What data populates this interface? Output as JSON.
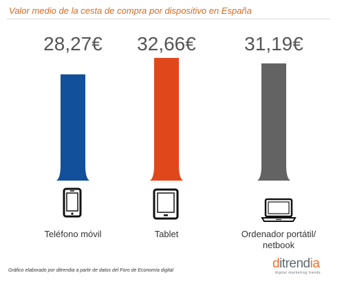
{
  "title": "Valor medio de la cesta de compra por dispositivo en España",
  "footer": "Gráfico elaborado por ditrendia a partir de datos del Foro de Economía digital",
  "logo": {
    "brand": "ditrendia",
    "tagline": "digital marketing trends"
  },
  "colors": {
    "title": "#d96a1f",
    "bar_blue": "#12509b",
    "bar_orange": "#e0481b",
    "bar_gray": "#636363",
    "value_text": "#555555"
  },
  "devices": [
    {
      "label": "Teléfono móvil",
      "icon": "smartphone-icon"
    },
    {
      "label": "Tablet",
      "icon": "tablet-icon"
    },
    {
      "label": "Ordenador portátil/\nnetbook",
      "icon": "laptop-icon"
    }
  ],
  "chart_data": {
    "type": "bar",
    "title": "Valor medio de la cesta de compra por dispositivo en España",
    "categories": [
      "Teléfono móvil",
      "Tablet",
      "Ordenador portátil/netbook"
    ],
    "values": [
      28.27,
      32.66,
      31.19
    ],
    "value_labels": [
      "28,27€",
      "32,66€",
      "31,19€"
    ],
    "colors": [
      "#12509b",
      "#e0481b",
      "#636363"
    ],
    "unit": "€",
    "xlabel": "",
    "ylabel": "",
    "ylim": [
      0,
      32.66
    ],
    "grid": false,
    "legend": "none"
  }
}
